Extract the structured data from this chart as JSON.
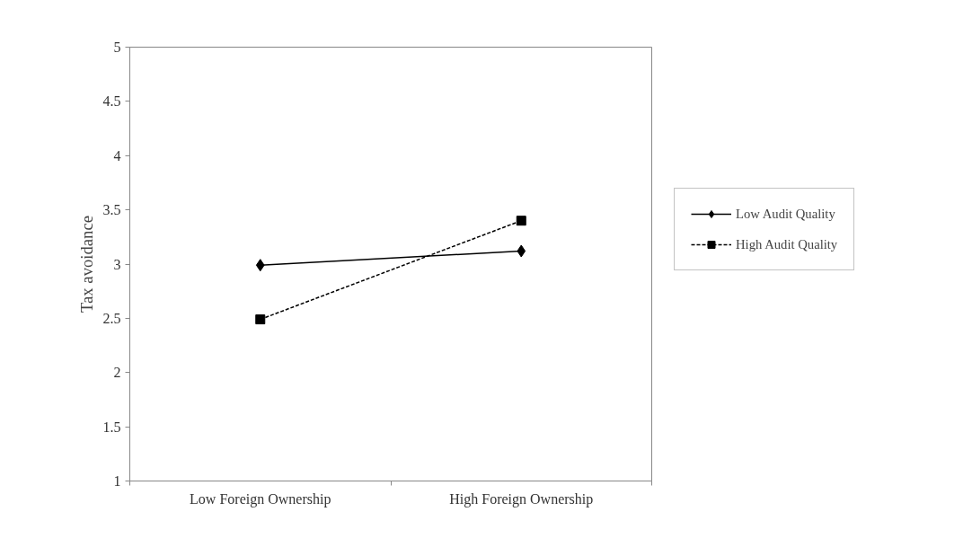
{
  "chart_data": {
    "type": "line",
    "ylabel": "Tax avoidance",
    "categories": [
      "Low Foreign Ownership",
      "High Foreign Ownership"
    ],
    "series": [
      {
        "name": "Low Audit Quality",
        "color": "#000000",
        "values": [
          2.99,
          3.12
        ],
        "marker": "diamond",
        "line_style": "solid"
      },
      {
        "name": "High Audit Quality",
        "color": "#000000",
        "values": [
          2.49,
          3.4
        ],
        "marker": "square",
        "line_style": "dashed"
      }
    ],
    "ylim": [
      1,
      5
    ],
    "yticks": [
      1,
      1.5,
      2,
      2.5,
      3,
      3.5,
      4,
      4.5,
      5
    ],
    "grid": false,
    "legend": "right"
  }
}
